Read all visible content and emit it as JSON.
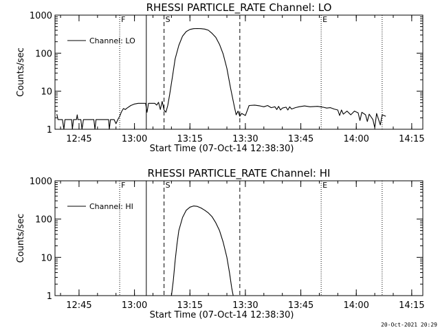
{
  "chart_data": [
    {
      "type": "line",
      "title": "RHESSI PARTICLE_RATE Channel: LO",
      "xlabel": "Start Time (07-Oct-14 12:38:30)",
      "ylabel": "Counts/sec",
      "y_scale": "log",
      "ylim": [
        1,
        1000
      ],
      "y_ticks": [
        "1",
        "10",
        "100",
        "1000"
      ],
      "x_ticks": [
        "12:45",
        "13:00",
        "13:15",
        "13:30",
        "13:45",
        "14:00",
        "14:15"
      ],
      "xlim_minutes_after_start": [
        0,
        99.5
      ],
      "legend": "top-left",
      "legend_label": "Channel: LO",
      "markers": [
        {
          "label": "F",
          "t": 17.5,
          "style": "dotted"
        },
        {
          "label": "",
          "t": 24.7,
          "style": "solid"
        },
        {
          "label": "S",
          "t": 29.5,
          "style": "dashed"
        },
        {
          "label": "",
          "t": 50.0,
          "style": "dashed"
        },
        {
          "label": "E",
          "t": 72.0,
          "style": "dotted"
        },
        {
          "label": "",
          "t": 88.5,
          "style": "dotted"
        }
      ],
      "series": [
        {
          "name": "Channel: LO",
          "points": [
            [
              0.5,
              2.5
            ],
            [
              0.8,
              1.8
            ],
            [
              2.0,
              1.8
            ],
            [
              2.4,
              1.0
            ],
            [
              2.7,
              1.8
            ],
            [
              4.5,
              1.8
            ],
            [
              4.7,
              1.0
            ],
            [
              5.0,
              1.8
            ],
            [
              5.8,
              1.8
            ],
            [
              6.0,
              2.4
            ],
            [
              6.2,
              1.8
            ],
            [
              7.0,
              1.8
            ],
            [
              7.3,
              1.0
            ],
            [
              7.7,
              1.8
            ],
            [
              10.5,
              1.8
            ],
            [
              10.8,
              1.0
            ],
            [
              11.1,
              1.8
            ],
            [
              14.5,
              1.8
            ],
            [
              14.7,
              1.0
            ],
            [
              15.0,
              1.8
            ],
            [
              16.0,
              1.8
            ],
            [
              16.5,
              1.4
            ],
            [
              17.0,
              1.8
            ],
            [
              17.5,
              2.2
            ],
            [
              18.0,
              2.9
            ],
            [
              18.5,
              3.5
            ],
            [
              19.0,
              3.3
            ],
            [
              19.5,
              3.6
            ],
            [
              20.5,
              4.2
            ],
            [
              21.5,
              4.6
            ],
            [
              22.5,
              4.8
            ],
            [
              24.5,
              4.8
            ],
            [
              24.9,
              2.8
            ],
            [
              25.3,
              4.8
            ],
            [
              27.0,
              4.8
            ],
            [
              27.5,
              4.3
            ],
            [
              28.0,
              5.1
            ],
            [
              28.5,
              3.3
            ],
            [
              29.0,
              5.4
            ],
            [
              29.5,
              3.2
            ],
            [
              30.0,
              2.8
            ],
            [
              30.5,
              4.2
            ],
            [
              31.0,
              8.0
            ],
            [
              31.8,
              25.0
            ],
            [
              32.5,
              70.0
            ],
            [
              33.5,
              160.0
            ],
            [
              34.5,
              280.0
            ],
            [
              35.5,
              370.0
            ],
            [
              36.5,
              420.0
            ],
            [
              37.5,
              440.0
            ],
            [
              38.5,
              445.0
            ],
            [
              39.5,
              440.0
            ],
            [
              40.5,
              430.0
            ],
            [
              41.5,
              400.0
            ],
            [
              42.5,
              330.0
            ],
            [
              43.5,
              260.0
            ],
            [
              44.5,
              170.0
            ],
            [
              45.5,
              95.0
            ],
            [
              46.5,
              40.0
            ],
            [
              47.5,
              12.0
            ],
            [
              48.5,
              4.0
            ],
            [
              49.0,
              2.4
            ],
            [
              49.5,
              3.0
            ],
            [
              50.0,
              2.2
            ],
            [
              50.5,
              2.6
            ],
            [
              51.5,
              2.3
            ],
            [
              52.0,
              3.1
            ],
            [
              52.5,
              4.2
            ],
            [
              54.0,
              4.3
            ],
            [
              55.5,
              4.1
            ],
            [
              56.5,
              3.9
            ],
            [
              57.5,
              4.2
            ],
            [
              58.5,
              3.7
            ],
            [
              59.5,
              3.9
            ],
            [
              60.0,
              3.3
            ],
            [
              60.5,
              4.0
            ],
            [
              61.0,
              3.2
            ],
            [
              61.5,
              3.6
            ],
            [
              62.5,
              3.8
            ],
            [
              63.0,
              3.2
            ],
            [
              63.5,
              3.9
            ],
            [
              64.0,
              3.4
            ],
            [
              65.0,
              3.7
            ],
            [
              66.0,
              3.9
            ],
            [
              67.5,
              4.1
            ],
            [
              69.0,
              3.9
            ],
            [
              71.0,
              4.0
            ],
            [
              72.5,
              3.8
            ],
            [
              73.5,
              3.6
            ],
            [
              74.5,
              3.7
            ],
            [
              75.5,
              3.4
            ],
            [
              76.5,
              3.2
            ],
            [
              77.0,
              2.3
            ],
            [
              77.5,
              3.2
            ],
            [
              78.0,
              2.5
            ],
            [
              79.0,
              3.0
            ],
            [
              80.0,
              2.4
            ],
            [
              81.0,
              3.0
            ],
            [
              82.0,
              2.7
            ],
            [
              82.5,
              1.7
            ],
            [
              83.0,
              2.8
            ],
            [
              84.0,
              2.4
            ],
            [
              84.5,
              1.6
            ],
            [
              85.0,
              2.5
            ],
            [
              86.0,
              1.8
            ],
            [
              86.5,
              1.1
            ],
            [
              87.0,
              2.6
            ],
            [
              88.0,
              1.3
            ],
            [
              88.5,
              2.4
            ],
            [
              89.5,
              2.2
            ]
          ]
        }
      ]
    },
    {
      "type": "line",
      "title": "RHESSI PARTICLE_RATE Channel: HI",
      "xlabel": "Start Time (07-Oct-14 12:38:30)",
      "ylabel": "Counts/sec",
      "y_scale": "log",
      "ylim": [
        1,
        1000
      ],
      "y_ticks": [
        "1",
        "10",
        "100",
        "1000"
      ],
      "x_ticks": [
        "12:45",
        "13:00",
        "13:15",
        "13:30",
        "13:45",
        "14:00",
        "14:15"
      ],
      "xlim_minutes_after_start": [
        0,
        99.5
      ],
      "legend": "top-left",
      "legend_label": "Channel: HI",
      "markers": [
        {
          "label": "F",
          "t": 17.5,
          "style": "dotted"
        },
        {
          "label": "",
          "t": 24.7,
          "style": "solid"
        },
        {
          "label": "S",
          "t": 29.5,
          "style": "dashed"
        },
        {
          "label": "",
          "t": 50.0,
          "style": "dashed"
        },
        {
          "label": "E",
          "t": 72.0,
          "style": "dotted"
        },
        {
          "label": "",
          "t": 88.5,
          "style": "dotted"
        }
      ],
      "series": [
        {
          "name": "Channel: HI",
          "points": [
            [
              31.5,
              1.0
            ],
            [
              32.0,
              2.5
            ],
            [
              32.5,
              8.0
            ],
            [
              33.0,
              22.0
            ],
            [
              33.5,
              50.0
            ],
            [
              34.5,
              110.0
            ],
            [
              35.5,
              170.0
            ],
            [
              36.5,
              205.0
            ],
            [
              37.5,
              220.0
            ],
            [
              38.5,
              215.0
            ],
            [
              39.5,
              195.0
            ],
            [
              40.5,
              170.0
            ],
            [
              41.5,
              145.0
            ],
            [
              42.5,
              115.0
            ],
            [
              43.5,
              80.0
            ],
            [
              44.5,
              50.0
            ],
            [
              45.5,
              25.0
            ],
            [
              46.5,
              10.0
            ],
            [
              47.2,
              4.0
            ],
            [
              47.8,
              1.6
            ],
            [
              48.2,
              1.0
            ]
          ]
        }
      ]
    }
  ],
  "footer": {
    "timestamp": "20-Oct-2021 20:29"
  }
}
